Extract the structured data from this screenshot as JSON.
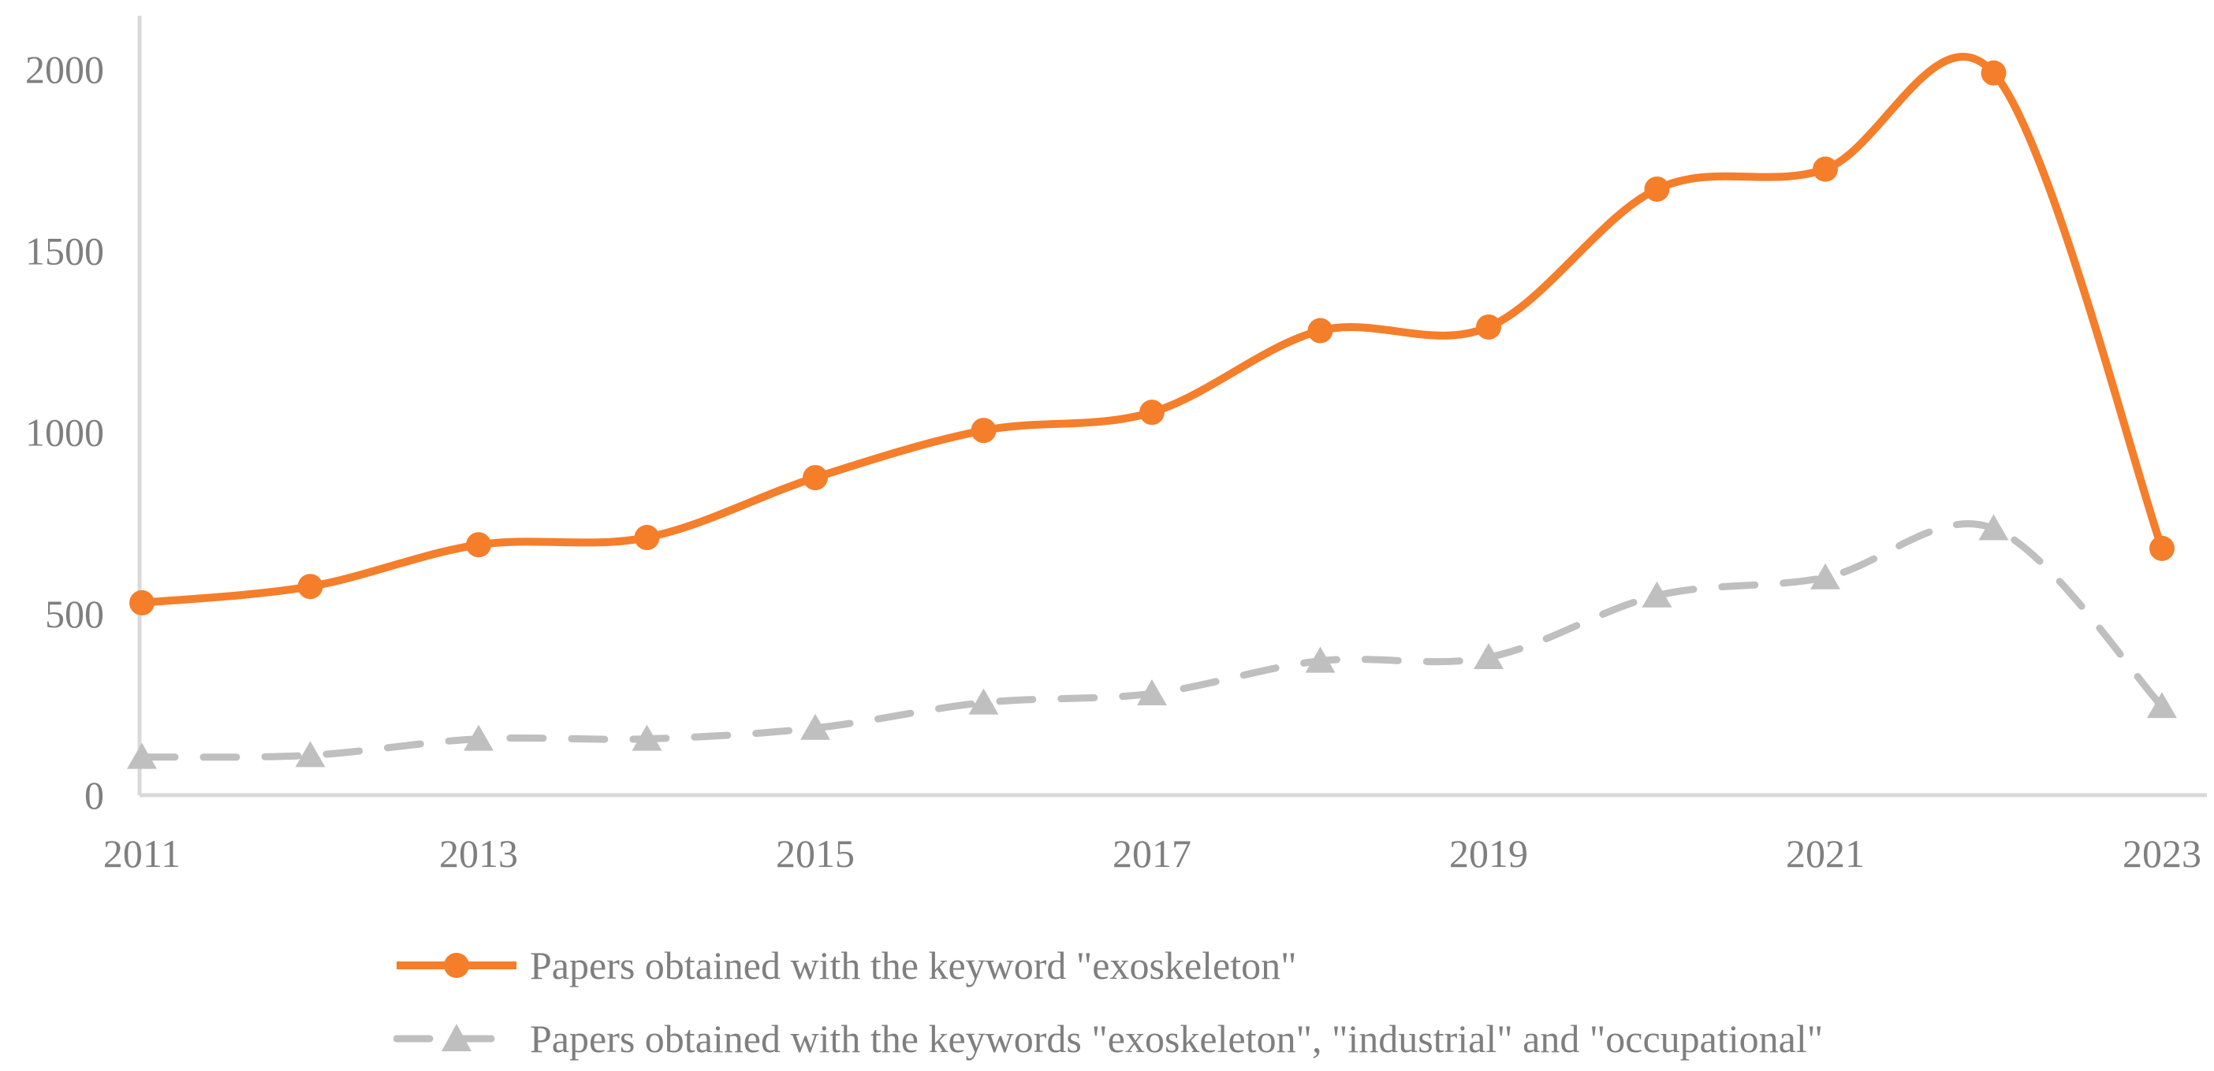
{
  "chart_data": {
    "type": "line",
    "x": [
      2011,
      2012,
      2013,
      2014,
      2015,
      2016,
      2017,
      2018,
      2019,
      2020,
      2021,
      2022,
      2023
    ],
    "series": [
      {
        "name": "Papers obtained with the keyword \"exoskeleton\"",
        "values": [
          530,
          575,
          690,
          710,
          875,
          1005,
          1055,
          1280,
          1290,
          1670,
          1725,
          1990,
          680
        ],
        "color": "#F57E2B",
        "marker": "circle",
        "line_style": "solid"
      },
      {
        "name": "Papers obtained with the keywords \"exoskeleton\", \"industrial\" and \"occupational\"",
        "values": [
          105,
          110,
          155,
          155,
          185,
          255,
          280,
          370,
          380,
          550,
          600,
          735,
          245
        ],
        "color": "#BFBFBF",
        "marker": "triangle",
        "line_style": "dashed"
      }
    ],
    "title": "",
    "xlabel": "",
    "ylabel": "",
    "ylim": [
      0,
      2000
    ],
    "yticks": [
      0,
      500,
      1000,
      1500,
      2000
    ],
    "xticks": [
      2011,
      2013,
      2015,
      2017,
      2019,
      2021,
      2023
    ],
    "grid": false,
    "legend_position": "bottom"
  },
  "colors": {
    "axis_line": "#D9D9D9",
    "tick_text": "#7F7F7F",
    "legend_text": "#7F7F7F",
    "background": "#FFFFFF"
  }
}
